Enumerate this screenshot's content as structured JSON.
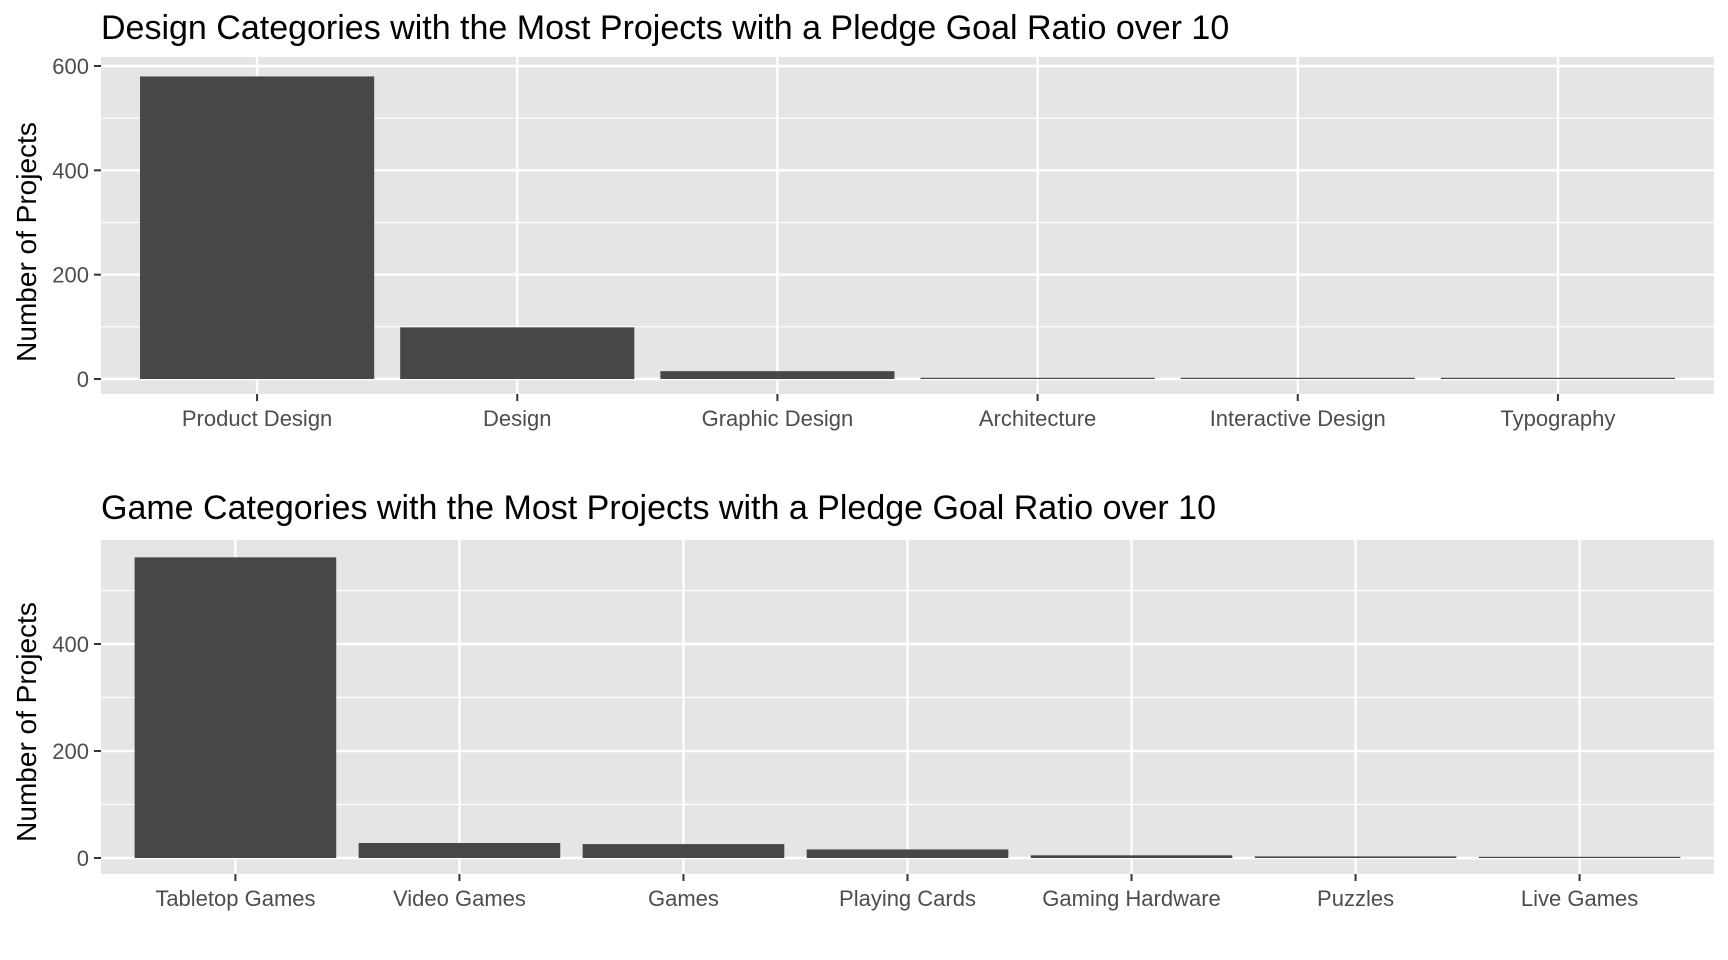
{
  "chart_data": [
    {
      "type": "bar",
      "title": "Design Categories with the Most Projects with a Pledge Goal Ratio over 10",
      "xlabel": "",
      "ylabel": "Number of Projects",
      "categories": [
        "Product Design",
        "Design",
        "Graphic Design",
        "Architecture",
        "Interactive Design",
        "Typography"
      ],
      "values": [
        580,
        99,
        15,
        2,
        1,
        1
      ],
      "ylim": [
        0,
        600
      ],
      "yticks": [
        0,
        200,
        400,
        600
      ],
      "grid": true,
      "bar_color": "#474747",
      "panel_color": "#e5e5e5"
    },
    {
      "type": "bar",
      "title": "Game Categories with the Most Projects with a Pledge Goal Ratio over 10",
      "xlabel": "",
      "ylabel": "Number of Projects",
      "categories": [
        "Tabletop Games",
        "Video Games",
        "Games",
        "Playing Cards",
        "Gaming Hardware",
        "Puzzles",
        "Live Games"
      ],
      "values": [
        562,
        28,
        26,
        16,
        5,
        3,
        1
      ],
      "ylim": [
        0,
        590
      ],
      "yticks": [
        0,
        200,
        400
      ],
      "grid": true,
      "bar_color": "#474747",
      "panel_color": "#e5e5e5"
    }
  ]
}
